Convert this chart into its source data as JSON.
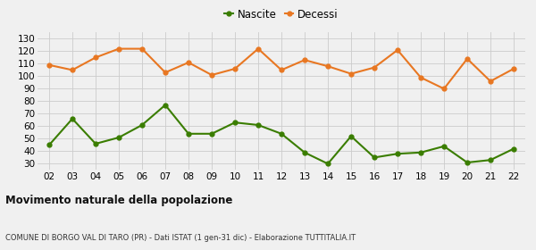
{
  "years": [
    "02",
    "03",
    "04",
    "05",
    "06",
    "07",
    "08",
    "09",
    "10",
    "11",
    "12",
    "13",
    "14",
    "15",
    "16",
    "17",
    "18",
    "19",
    "20",
    "21",
    "22"
  ],
  "nascite": [
    45,
    66,
    46,
    51,
    61,
    77,
    54,
    54,
    63,
    61,
    54,
    39,
    30,
    52,
    35,
    38,
    39,
    44,
    31,
    33,
    42
  ],
  "decessi": [
    109,
    105,
    115,
    122,
    122,
    103,
    111,
    101,
    106,
    122,
    105,
    113,
    108,
    102,
    107,
    121,
    99,
    90,
    114,
    96,
    106
  ],
  "nascite_color": "#3a7d00",
  "decessi_color": "#e87722",
  "background_color": "#f0f0f0",
  "grid_color": "#cccccc",
  "ylim": [
    25,
    135
  ],
  "yticks": [
    30,
    40,
    50,
    60,
    70,
    80,
    90,
    100,
    110,
    120,
    130
  ],
  "title": "Movimento naturale della popolazione",
  "subtitle": "COMUNE DI BORGO VAL DI TARO (PR) - Dati ISTAT (1 gen-31 dic) - Elaborazione TUTTITALIA.IT",
  "legend_nascite": "Nascite",
  "legend_decessi": "Decessi",
  "marker_size": 3.5,
  "line_width": 1.5
}
